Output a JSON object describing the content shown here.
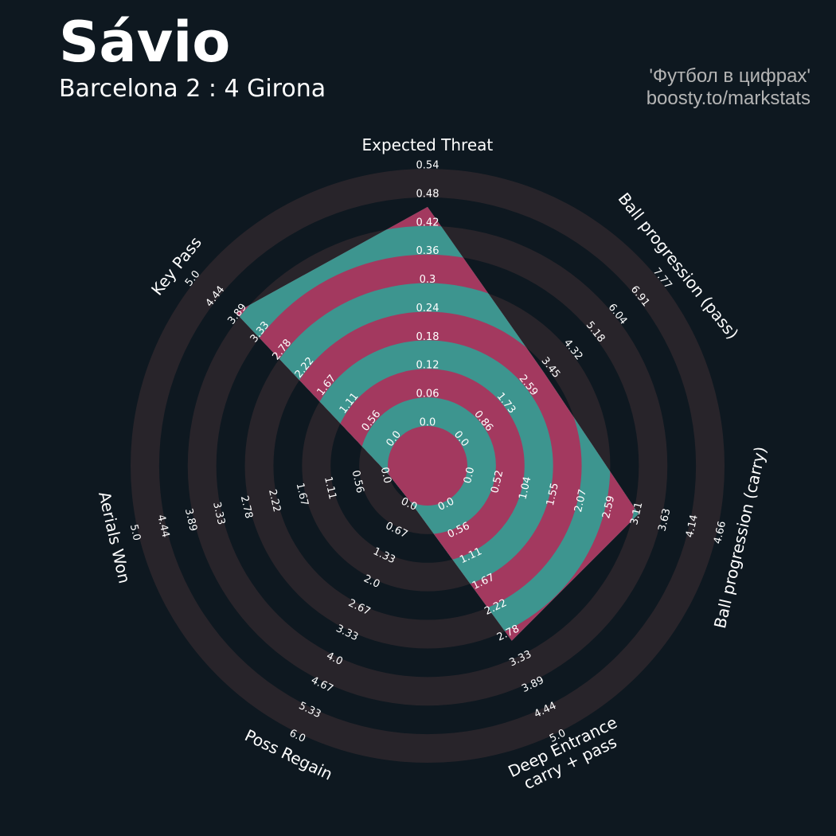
{
  "chart_data": {
    "type": "radar",
    "title": "Sávio",
    "subtitle": "Barcelona 2 : 4 Girona",
    "credits": [
      "'Футбол в цифрах'",
      "boosty.to/markstats"
    ],
    "categories": [
      "Expected Threat",
      "Ball progression (pass)",
      "Ball progression (carry)",
      "Deep Entrance\ncarry + pass",
      "Poss Regain",
      "Aerials Won",
      "Key Pass"
    ],
    "values": [
      0.46,
      3.3,
      3.2,
      3.0,
      0,
      0,
      4.0
    ],
    "colors": [
      "#a3395f",
      "#3d958f"
    ],
    "ring_colors": [
      "#0e1820",
      "#28242a"
    ],
    "axes": [
      {
        "lim": [
          0,
          0.54
        ],
        "ticks": [
          {
            "value": 0,
            "label": "0.0"
          },
          0.06,
          0.12,
          0.18,
          0.24,
          0.3,
          0.36,
          0.42,
          0.48,
          0.54
        ]
      },
      {
        "lim": [
          0,
          7.77
        ],
        "ticks": [
          {
            "value": 0,
            "label": "0.0"
          },
          0.86,
          1.73,
          2.59,
          3.45,
          4.32,
          5.18,
          6.04,
          6.91,
          7.77
        ]
      },
      {
        "lim": [
          0,
          4.66
        ],
        "ticks": [
          {
            "value": 0,
            "label": "0.0"
          },
          0.52,
          1.04,
          1.55,
          2.07,
          2.59,
          3.11,
          3.63,
          4.14,
          4.66
        ]
      },
      {
        "lim": [
          0,
          5
        ],
        "ticks": [
          {
            "value": 0,
            "label": "0.0"
          },
          0.56,
          1.11,
          1.67,
          2.22,
          2.78,
          3.33,
          3.89,
          4.44,
          {
            "value": 5,
            "label": "5.0"
          }
        ]
      },
      {
        "lim": [
          0,
          6
        ],
        "ticks": [
          {
            "value": 0,
            "label": "0.0"
          },
          0.67,
          1.33,
          {
            "value": 2,
            "label": "2.0"
          },
          2.67,
          3.33,
          {
            "value": 4,
            "label": "4.0"
          },
          4.67,
          5.33,
          {
            "value": 6,
            "label": "6.0"
          }
        ]
      },
      {
        "lim": [
          0,
          5
        ],
        "ticks": [
          {
            "value": 0,
            "label": "0.0"
          },
          0.56,
          1.11,
          1.67,
          2.22,
          2.78,
          3.33,
          3.89,
          4.44,
          {
            "value": 5,
            "label": "5.0"
          }
        ]
      },
      {
        "lim": [
          0,
          5
        ],
        "ticks": [
          {
            "value": 0,
            "label": "0.0"
          },
          0.56,
          1.11,
          1.67,
          2.22,
          2.78,
          3.33,
          3.89,
          4.44,
          {
            "value": 5,
            "label": "5.0"
          }
        ]
      }
    ]
  }
}
